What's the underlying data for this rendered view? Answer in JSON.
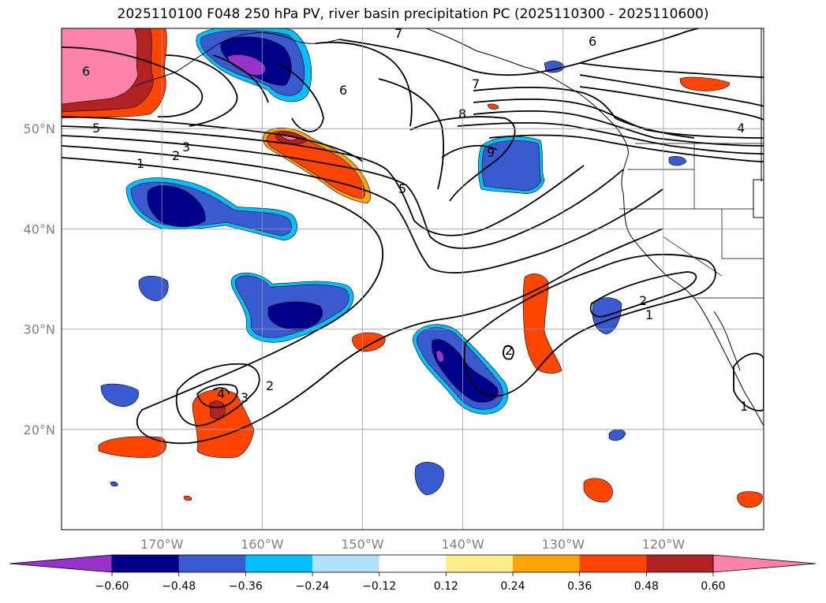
{
  "title": "2025110100 F048 250 hPa PV, river basin precipitation PC (2025110300 - 2025110600)",
  "map": {
    "lon_range": [
      -180,
      -110
    ],
    "lat_range": [
      10,
      60
    ],
    "lon_ticks": [
      -170,
      -160,
      -150,
      -140,
      -130,
      -120
    ],
    "lon_tick_labels": [
      "170°W",
      "160°W",
      "150°W",
      "140°W",
      "130°W",
      "120°W"
    ],
    "lat_ticks": [
      20,
      30,
      40,
      50
    ],
    "lat_tick_labels": [
      "20°N",
      "30°N",
      "40°N",
      "50°N"
    ],
    "grid": true,
    "contour_labels": [
      "6",
      "5",
      "3",
      "2",
      "1",
      "6",
      "7",
      "7",
      "6",
      "8",
      "9",
      "5",
      "4",
      "2",
      "1",
      "4",
      "3",
      "2",
      "2",
      "1"
    ]
  },
  "colorbar": {
    "orientation": "horizontal",
    "extend": "both",
    "levels": [
      -0.72,
      -0.6,
      -0.48,
      -0.36,
      -0.24,
      -0.12,
      0.12,
      0.24,
      0.36,
      0.48,
      0.6,
      0.72
    ],
    "colors": [
      "#9932cc",
      "#00008b",
      "#3a5bcf",
      "#00bfff",
      "#b0e2ff",
      "#ffffff",
      "#ffec8b",
      "#ffa500",
      "#ff4500",
      "#b22222",
      "#ff82ab"
    ],
    "under_color": "#9932cc",
    "over_color": "#ff82ab",
    "tick_labels": [
      "−0.60",
      "−0.48",
      "−0.36",
      "−0.24",
      "−0.12",
      "0.12",
      "0.24",
      "0.36",
      "0.48",
      "0.60"
    ]
  }
}
